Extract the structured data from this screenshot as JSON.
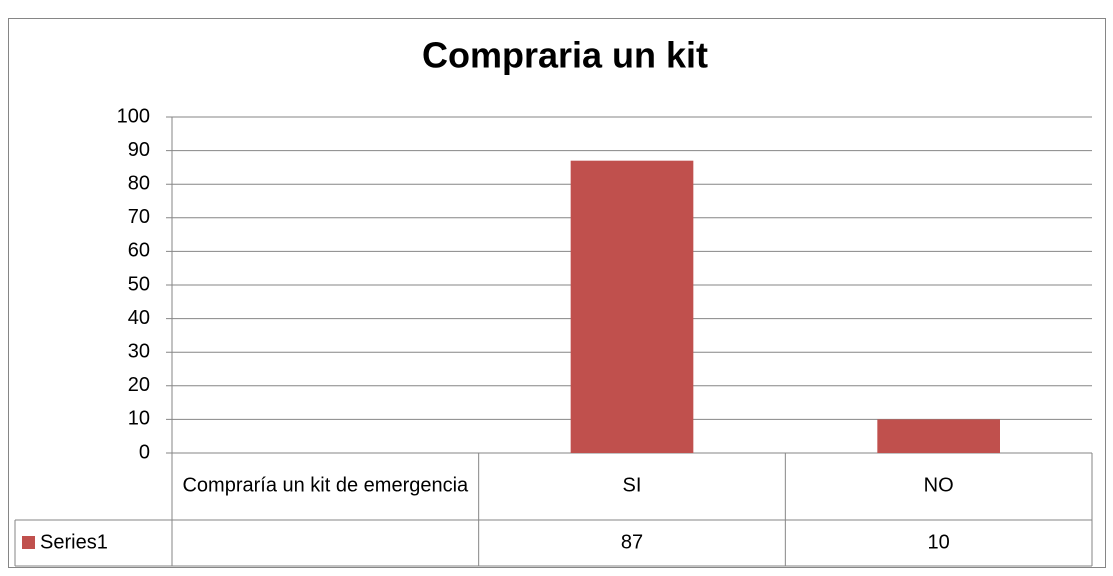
{
  "chart_data": {
    "type": "bar",
    "title": "Compraria un kit",
    "categories": [
      "Compraría un kit de emergencia",
      "SI",
      "NO"
    ],
    "series": [
      {
        "name": "Series1",
        "color": "#c0504d",
        "values": [
          null,
          87,
          10
        ]
      }
    ],
    "ylim": [
      0,
      100
    ],
    "yticks": [
      0,
      10,
      20,
      30,
      40,
      50,
      60,
      70,
      80,
      90,
      100
    ],
    "grid": true,
    "data_table": true
  }
}
